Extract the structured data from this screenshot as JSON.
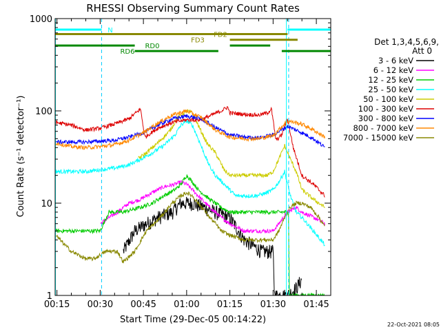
{
  "chart_data": {
    "type": "line",
    "title": "RHESSI Observing Summary Count Rates",
    "xlabel": "Start Time (29-Dec-05 00:14:22)",
    "ylabel": "Count Rate (s⁻¹ detector⁻¹)",
    "yscale": "log",
    "ylim": [
      1,
      1000
    ],
    "xlim": [
      14.37,
      110
    ],
    "x_unit": "minutes after 00:00 UT",
    "x_tick_values": [
      15,
      30,
      45,
      60,
      75,
      90,
      105
    ],
    "x_tick_labels": [
      "00:15",
      "00:30",
      "00:45",
      "01:00",
      "01:15",
      "01:30",
      "01:45"
    ],
    "y_tick_values": [
      1,
      10,
      100,
      1000
    ],
    "y_tick_labels": [
      "1",
      "10",
      "100",
      "1000"
    ],
    "legend_title_1": "Det 1,3,4,5,6,9,",
    "legend_title_2": "Att 0",
    "legend_position": "right",
    "grid": false,
    "series": [
      {
        "name": "3 - 6 keV",
        "color": "#000000",
        "x": [
          14.5,
          30,
          32.5,
          38,
          42,
          46,
          50,
          55,
          58,
          62,
          66,
          70,
          75,
          80,
          86,
          90,
          90.5,
          95,
          98,
          100,
          104,
          108
        ],
        "values": [
          null,
          null,
          null,
          3,
          5,
          6,
          7,
          8,
          10,
          10,
          9,
          8,
          7,
          4,
          3,
          3,
          1,
          1,
          1.2,
          1.5,
          null,
          null
        ]
      },
      {
        "name": "6 - 12 keV",
        "color": "#ff00ff",
        "x": [
          14.5,
          29.5,
          30,
          36,
          40,
          44,
          48,
          52,
          56,
          58,
          60,
          62,
          64,
          68,
          72,
          75,
          80,
          86,
          90,
          92,
          95,
          98,
          100,
          104,
          108
        ],
        "values": [
          null,
          null,
          6,
          8,
          10,
          11,
          13,
          15,
          16,
          17,
          16,
          14,
          12,
          9,
          7,
          6,
          5,
          5,
          5,
          6,
          8,
          9,
          8,
          7,
          6
        ]
      },
      {
        "name": "12 - 25 keV",
        "color": "#00cc00",
        "x": [
          14.5,
          29.5,
          30,
          33,
          38,
          44,
          48,
          52,
          56,
          58,
          60,
          62,
          64,
          68,
          72,
          75,
          80,
          86,
          89.9,
          90,
          93,
          95.4,
          95.6,
          98,
          100,
          104,
          108
        ],
        "values": [
          5,
          5,
          5,
          8,
          8,
          9,
          10,
          12,
          14,
          16,
          20,
          17,
          14,
          11,
          9,
          8,
          8,
          8,
          8,
          8,
          8,
          8,
          1,
          1,
          1,
          1,
          1
        ]
      },
      {
        "name": "25 - 50 keV",
        "color": "#00ffff",
        "x": [
          14.5,
          20,
          25,
          30,
          35,
          40,
          44,
          48,
          52,
          56,
          58,
          60,
          62,
          64,
          66,
          68,
          70,
          74,
          77,
          80,
          84,
          88,
          90,
          92,
          94,
          96,
          98,
          100,
          104,
          108
        ],
        "values": [
          22,
          22,
          22,
          23,
          24,
          26,
          30,
          35,
          42,
          55,
          70,
          78,
          70,
          50,
          35,
          25,
          20,
          15,
          12,
          12,
          12,
          13,
          14,
          17,
          22,
          12,
          8,
          7,
          5,
          3.5
        ]
      },
      {
        "name": "50 - 100 keV",
        "color": "#cccc00",
        "x": [
          14.5,
          30,
          40,
          43,
          46,
          50,
          54,
          57,
          60,
          62,
          64,
          67,
          70,
          73,
          75,
          80,
          84,
          88,
          90,
          92,
          94,
          96,
          98,
          100,
          104,
          108
        ],
        "values": [
          null,
          null,
          null,
          30,
          35,
          45,
          60,
          85,
          100,
          95,
          70,
          45,
          35,
          23,
          20,
          20,
          20,
          20,
          22,
          30,
          42,
          30,
          22,
          14,
          11,
          9
        ]
      },
      {
        "name": "100 - 300 keV",
        "color": "#dd0000",
        "x": [
          14.5,
          20,
          25,
          30,
          35,
          40,
          44,
          45.5,
          50,
          55,
          60,
          65,
          72,
          74.2,
          75,
          80,
          85,
          88,
          89.4,
          91,
          93,
          95,
          97,
          100,
          104,
          108
        ],
        "values": [
          75,
          70,
          62,
          65,
          72,
          82,
          105,
          52,
          65,
          75,
          80,
          80,
          100,
          110,
          95,
          92,
          90,
          95,
          105,
          48,
          55,
          82,
          40,
          20,
          16,
          12
        ]
      },
      {
        "name": "300 - 800 keV",
        "color": "#0000ff",
        "x": [
          14.5,
          20,
          25,
          30,
          35,
          40,
          45,
          50,
          55,
          60,
          65,
          70,
          75,
          80,
          85,
          90,
          95,
          100,
          104,
          108
        ],
        "values": [
          46,
          46,
          46,
          47,
          48,
          52,
          58,
          70,
          82,
          88,
          82,
          66,
          55,
          52,
          51,
          55,
          68,
          58,
          50,
          40
        ]
      },
      {
        "name": "800 - 7000 keV",
        "color": "#ff8800",
        "x": [
          14.5,
          20,
          25,
          30,
          35,
          40,
          45,
          50,
          55,
          60,
          65,
          70,
          75,
          80,
          85,
          90,
          95,
          100,
          104,
          108
        ],
        "values": [
          45,
          41,
          40,
          41,
          43,
          48,
          58,
          74,
          90,
          100,
          85,
          62,
          52,
          50,
          50,
          54,
          78,
          72,
          62,
          52
        ]
      },
      {
        "name": "7000 - 15000 keV",
        "color": "#888800",
        "x": [
          14.5,
          20,
          25,
          28,
          32,
          36,
          38,
          42,
          46,
          50,
          55,
          58,
          60,
          62,
          64,
          66,
          68,
          70,
          72,
          75,
          80,
          85,
          90,
          92,
          94,
          96,
          98,
          100,
          103,
          106,
          108
        ],
        "values": [
          4.5,
          3,
          2.5,
          2.5,
          3,
          3,
          2.3,
          3,
          5,
          6.5,
          10,
          12,
          13,
          12,
          10,
          8.5,
          7,
          6,
          5,
          4.5,
          4,
          4,
          4,
          5,
          7,
          9,
          10,
          10,
          9,
          7,
          5.5
        ]
      }
    ],
    "flags": [
      {
        "label": "N",
        "color": "#00ffff",
        "level": 760,
        "segments": [
          [
            14.5,
            30.5
          ],
          [
            95,
            110
          ]
        ]
      },
      {
        "label": "FD2",
        "color": "#888800",
        "level": 680,
        "segments": [
          [
            14.5,
            95
          ]
        ]
      },
      {
        "label": "FD3",
        "color": "#888800",
        "level": 590,
        "segments": [
          [
            75,
            98.5
          ]
        ]
      },
      {
        "label": "RD0",
        "color": "#008800",
        "level": 510,
        "segments": [
          [
            14.5,
            42
          ],
          [
            75,
            89
          ]
        ]
      },
      {
        "label": "RD6",
        "color": "#008800",
        "level": 445,
        "segments": [
          [
            42,
            71
          ],
          [
            93,
            110
          ]
        ]
      }
    ],
    "dashed_vertical_lines_x": [
      30.5,
      95.4
    ],
    "vertical_lines_x": [
      14.5,
      94.6
    ]
  },
  "timestamp": "22-Oct-2021 08:05"
}
